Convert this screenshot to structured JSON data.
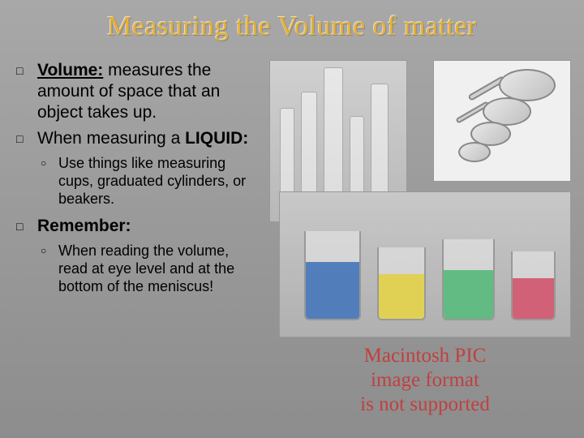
{
  "title": "Measuring the Volume of matter",
  "bullets": {
    "b1_term": "Volume:",
    "b1_rest": " measures the amount of space that an object takes up.",
    "b2_pre": "When measuring a ",
    "b2_bold": "LIQUID:",
    "b2_sub": "Use things like measuring cups, graduated cylinders, or beakers.",
    "b3": "Remember:",
    "b3_sub": "When reading the volume, read at eye level and at the bottom of the meniscus!"
  },
  "placeholder": {
    "l1": "Macintosh PIC",
    "l2": "image format",
    "l3": "is not supported"
  },
  "colors": {
    "title": "#e8b030",
    "placeholder_text": "#c04040",
    "bg_top": "#a8a8a8",
    "bg_bottom": "#8d8d8d",
    "liquid_blue": "#1a5ab0",
    "liquid_yellow": "#e6d020",
    "liquid_green": "#30b060",
    "liquid_red": "#d03050"
  }
}
